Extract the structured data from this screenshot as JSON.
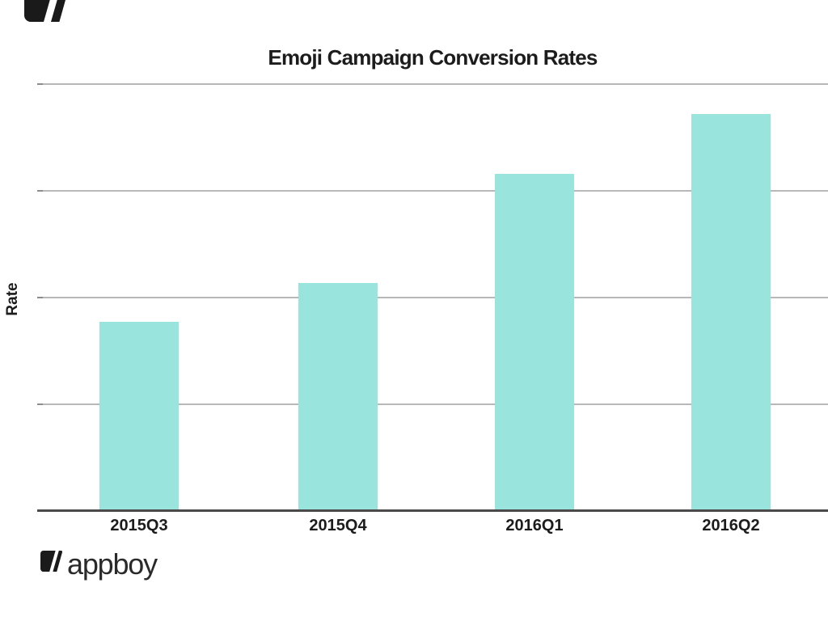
{
  "header": {
    "title": "Emoji Campaign Conversion Rates"
  },
  "axis": {
    "y_label": "Rate"
  },
  "branding": {
    "logo_text": "appboy",
    "logo_mark": "appboy-slash-mark-icon",
    "corner_mark": "appboy-slash-mark-icon-cropped"
  },
  "colors": {
    "bar": "#99e5de",
    "gridline": "#b8b8b8",
    "axis_line": "#4a4a4a",
    "text": "#1c1c1c",
    "logo": "#1a1a1a",
    "background": "#ffffff"
  },
  "chart_data": {
    "type": "bar",
    "title": "Emoji Campaign Conversion Rates",
    "xlabel": "",
    "ylabel": "Rate",
    "categories": [
      "2015Q3",
      "2015Q4",
      "2016Q1",
      "2016Q2"
    ],
    "values": [
      1.77,
      2.14,
      3.16,
      3.72
    ],
    "ylim": [
      0,
      4
    ],
    "y_tick_labels_shown": false,
    "gridline_count": 4,
    "grid": "horizontal",
    "legend": "none",
    "bar_color": "#99e5de"
  }
}
